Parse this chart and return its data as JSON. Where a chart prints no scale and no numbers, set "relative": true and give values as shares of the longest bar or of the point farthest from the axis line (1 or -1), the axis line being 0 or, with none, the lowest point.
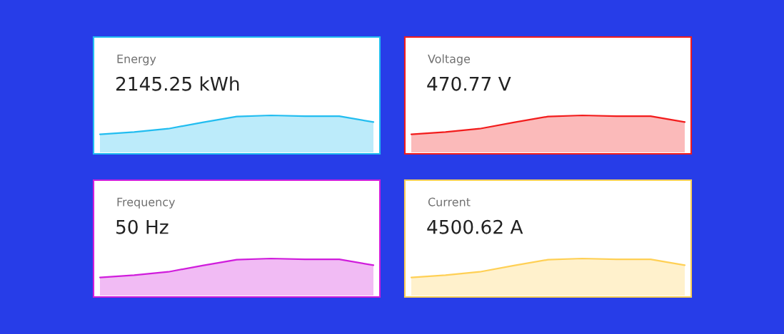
{
  "chart_data": [
    {
      "type": "area",
      "title": "Energy",
      "subtitle": "2145.25 kWh",
      "relative": true,
      "categories": [
        null,
        null,
        null,
        null,
        null,
        null,
        null,
        null,
        null
      ],
      "series": [
        {
          "color": "#22bdf0",
          "values": [
            0.49,
            0.55,
            0.64,
            0.81,
            0.97,
            1,
            0.98,
            0.98,
            0.82
          ]
        }
      ]
    },
    {
      "type": "area",
      "title": "Voltage",
      "subtitle": "470.77 V",
      "relative": true,
      "categories": [
        null,
        null,
        null,
        null,
        null,
        null,
        null,
        null,
        null
      ],
      "series": [
        {
          "color": "#f21c1c",
          "values": [
            0.49,
            0.55,
            0.64,
            0.81,
            0.97,
            1,
            0.98,
            0.98,
            0.82
          ]
        }
      ]
    },
    {
      "type": "area",
      "title": "Frequency",
      "subtitle": "50 Hz",
      "relative": true,
      "categories": [
        null,
        null,
        null,
        null,
        null,
        null,
        null,
        null,
        null
      ],
      "series": [
        {
          "color": "#d01ddc",
          "values": [
            0.49,
            0.55,
            0.64,
            0.81,
            0.97,
            1,
            0.98,
            0.98,
            0.82
          ]
        }
      ]
    },
    {
      "type": "area",
      "title": "Current",
      "subtitle": "4500.62 A",
      "relative": true,
      "categories": [
        null,
        null,
        null,
        null,
        null,
        null,
        null,
        null,
        null
      ],
      "series": [
        {
          "color": "#ffd055",
          "values": [
            0.49,
            0.55,
            0.64,
            0.81,
            0.97,
            1,
            0.98,
            0.98,
            0.82
          ]
        }
      ]
    }
  ]
}
